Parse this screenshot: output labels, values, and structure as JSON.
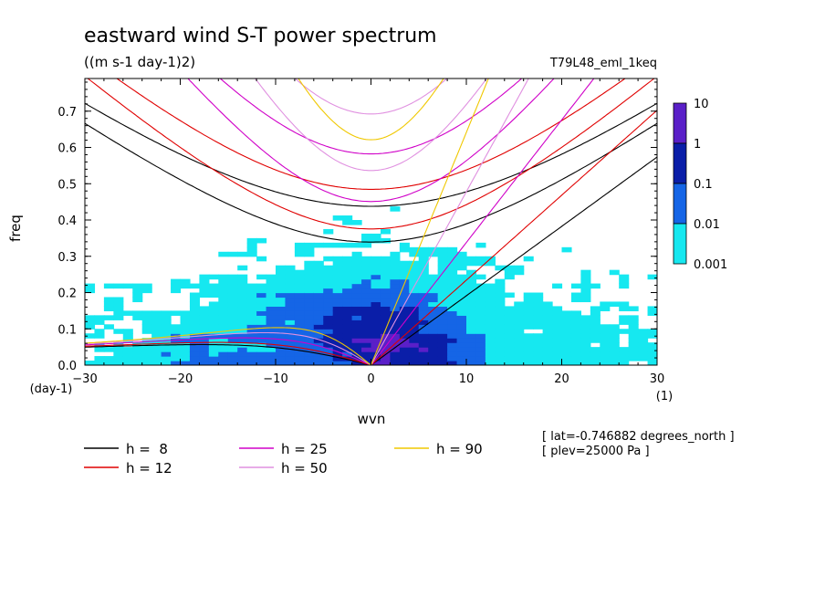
{
  "chart_data": {
    "type": "heatmap",
    "title": "eastward wind S-T power spectrum",
    "subtitle": "((m s-1 day-1)2)",
    "run_label": "T79L48_eml_1keq",
    "xlabel": "wvn",
    "ylabel": "freq",
    "x_unit": "(1)",
    "y_unit": "(day-1)",
    "xlim": [
      -30,
      30
    ],
    "ylim": [
      0.0,
      0.79
    ],
    "x_ticks": [
      -30,
      -20,
      -10,
      0,
      10,
      20,
      30
    ],
    "x_tick_labels": [
      "-30",
      "-20",
      "-10",
      "0",
      "10",
      "20",
      "30"
    ],
    "y_ticks": [
      0.0,
      0.1,
      0.2,
      0.3,
      0.4,
      0.5,
      0.6,
      0.7
    ],
    "y_tick_labels": [
      "0.0",
      "0.1",
      "0.2",
      "0.3",
      "0.4",
      "0.5",
      "0.6",
      "0.7"
    ],
    "colorbar": {
      "labels": [
        "10",
        "1",
        "0.1",
        "0.01",
        "0.001"
      ],
      "bins": [
        {
          "min": 1,
          "max": 10,
          "color": "#5a1fc8"
        },
        {
          "min": 0.1,
          "max": 1,
          "color": "#0a1ea8"
        },
        {
          "min": 0.01,
          "max": 0.1,
          "color": "#1565e6"
        },
        {
          "min": 0.001,
          "max": 0.01,
          "color": "#16e8f0"
        }
      ]
    },
    "series": [
      {
        "name": "h =  8",
        "h": 8,
        "color": "#000000"
      },
      {
        "name": "h = 12",
        "h": 12,
        "color": "#e00000"
      },
      {
        "name": "h = 25",
        "h": 25,
        "color": "#d000c8"
      },
      {
        "name": "h = 50",
        "h": 50,
        "color": "#e090e0"
      },
      {
        "name": "h = 90",
        "h": 90,
        "color": "#f0c800"
      }
    ],
    "annotations": [
      "[ lat=-0.746882 degrees_north ]",
      "[ plev=25000 Pa ]"
    ]
  }
}
